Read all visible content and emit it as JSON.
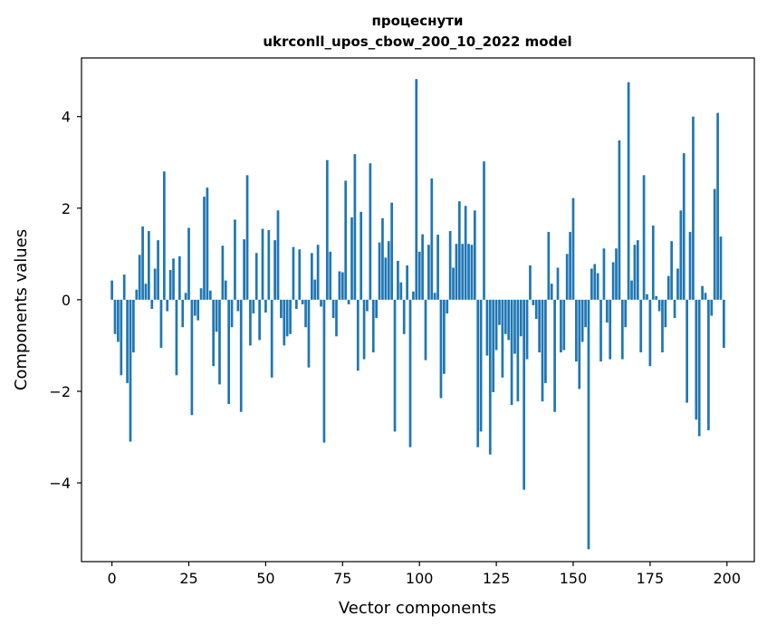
{
  "chart_data": {
    "type": "bar",
    "title_line1": "процеснути",
    "title_line2": "ukrconll_upos_cbow_200_10_2022 model",
    "xlabel": "Vector components",
    "ylabel": "Components values",
    "xlim": [
      -9.9,
      208.9
    ],
    "ylim": [
      -5.72,
      5.28
    ],
    "xticks": [
      0,
      25,
      50,
      75,
      100,
      125,
      150,
      175,
      200
    ],
    "yticks": [
      -4,
      -2,
      0,
      2,
      4
    ],
    "ytick_labels": [
      "−4",
      "−2",
      "0",
      "2",
      "4"
    ],
    "bar_color": "#1f77b4",
    "grid": false,
    "x": [
      0,
      1,
      2,
      3,
      4,
      5,
      6,
      7,
      8,
      9,
      10,
      11,
      12,
      13,
      14,
      15,
      16,
      17,
      18,
      19,
      20,
      21,
      22,
      23,
      24,
      25,
      26,
      27,
      28,
      29,
      30,
      31,
      32,
      33,
      34,
      35,
      36,
      37,
      38,
      39,
      40,
      41,
      42,
      43,
      44,
      45,
      46,
      47,
      48,
      49,
      50,
      51,
      52,
      53,
      54,
      55,
      56,
      57,
      58,
      59,
      60,
      61,
      62,
      63,
      64,
      65,
      66,
      67,
      68,
      69,
      70,
      71,
      72,
      73,
      74,
      75,
      76,
      77,
      78,
      79,
      80,
      81,
      82,
      83,
      84,
      85,
      86,
      87,
      88,
      89,
      90,
      91,
      92,
      93,
      94,
      95,
      96,
      97,
      98,
      99,
      100,
      101,
      102,
      103,
      104,
      105,
      106,
      107,
      108,
      109,
      110,
      111,
      112,
      113,
      114,
      115,
      116,
      117,
      118,
      119,
      120,
      121,
      122,
      123,
      124,
      125,
      126,
      127,
      128,
      129,
      130,
      131,
      132,
      133,
      134,
      135,
      136,
      137,
      138,
      139,
      140,
      141,
      142,
      143,
      144,
      145,
      146,
      147,
      148,
      149,
      150,
      151,
      152,
      153,
      154,
      155,
      156,
      157,
      158,
      159,
      160,
      161,
      162,
      163,
      164,
      165,
      166,
      167,
      168,
      169,
      170,
      171,
      172,
      173,
      174,
      175,
      176,
      177,
      178,
      179,
      180,
      181,
      182,
      183,
      184,
      185,
      186,
      187,
      188,
      189,
      190,
      191,
      192,
      193,
      194,
      195,
      196,
      197,
      198,
      199
    ],
    "values": [
      0.42,
      -0.75,
      -0.92,
      -1.65,
      0.55,
      -1.82,
      -3.1,
      -1.15,
      0.22,
      0.98,
      1.6,
      0.35,
      1.5,
      -0.2,
      0.68,
      1.3,
      -1.05,
      2.8,
      -0.25,
      0.65,
      0.9,
      -1.65,
      0.95,
      -0.6,
      0.15,
      1.57,
      -2.52,
      -0.35,
      -0.45,
      0.25,
      2.25,
      2.45,
      0.2,
      -1.45,
      -0.7,
      -1.85,
      1.18,
      0.42,
      -2.28,
      -0.6,
      1.75,
      -0.25,
      -2.45,
      1.32,
      2.72,
      -1.0,
      -0.3,
      1.02,
      -0.88,
      1.55,
      -0.28,
      1.52,
      -1.7,
      1.3,
      1.95,
      -0.4,
      -1.0,
      -0.8,
      -0.75,
      1.15,
      -0.2,
      1.1,
      -0.1,
      -0.6,
      -1.48,
      1.02,
      0.44,
      1.2,
      -0.15,
      -3.12,
      3.05,
      1.05,
      -0.4,
      -0.8,
      0.62,
      0.6,
      2.6,
      -0.1,
      1.8,
      3.18,
      -1.55,
      1.92,
      -1.3,
      -0.25,
      2.98,
      -1.15,
      -0.4,
      1.25,
      1.78,
      0.92,
      1.28,
      2.12,
      -2.88,
      0.85,
      0.38,
      -0.75,
      0.75,
      -3.22,
      0.18,
      4.82,
      1.05,
      1.43,
      -1.32,
      1.2,
      2.65,
      0.15,
      1.42,
      -2.15,
      -1.62,
      -0.3,
      1.5,
      0.7,
      1.22,
      2.15,
      1.22,
      2.05,
      1.22,
      1.2,
      1.95,
      -3.22,
      -2.88,
      3.02,
      -1.22,
      -3.38,
      -2.02,
      -1.1,
      -0.55,
      -1.7,
      -0.75,
      -0.88,
      -2.3,
      -1.18,
      -2.22,
      -0.8,
      -4.15,
      -1.3,
      0.75,
      -0.12,
      -0.42,
      -1.15,
      -2.22,
      -1.82,
      1.48,
      0.35,
      -2.45,
      0.7,
      -1.15,
      -1.1,
      1.0,
      1.48,
      2.22,
      -1.35,
      -1.95,
      -0.92,
      -0.6,
      -5.45,
      0.68,
      0.78,
      0.58,
      -1.35,
      1.12,
      -0.5,
      -1.3,
      0.82,
      1.12,
      3.48,
      -1.3,
      -0.6,
      4.75,
      0.42,
      1.2,
      1.3,
      -1.15,
      2.72,
      0.12,
      -1.45,
      1.62,
      0.08,
      -0.25,
      -1.15,
      -0.6,
      0.52,
      1.28,
      -0.4,
      0.68,
      1.95,
      3.2,
      -2.25,
      1.48,
      4.0,
      -2.62,
      -2.98,
      0.3,
      0.15,
      -2.85,
      -0.35,
      2.42,
      4.08,
      1.38,
      -1.05
    ]
  }
}
